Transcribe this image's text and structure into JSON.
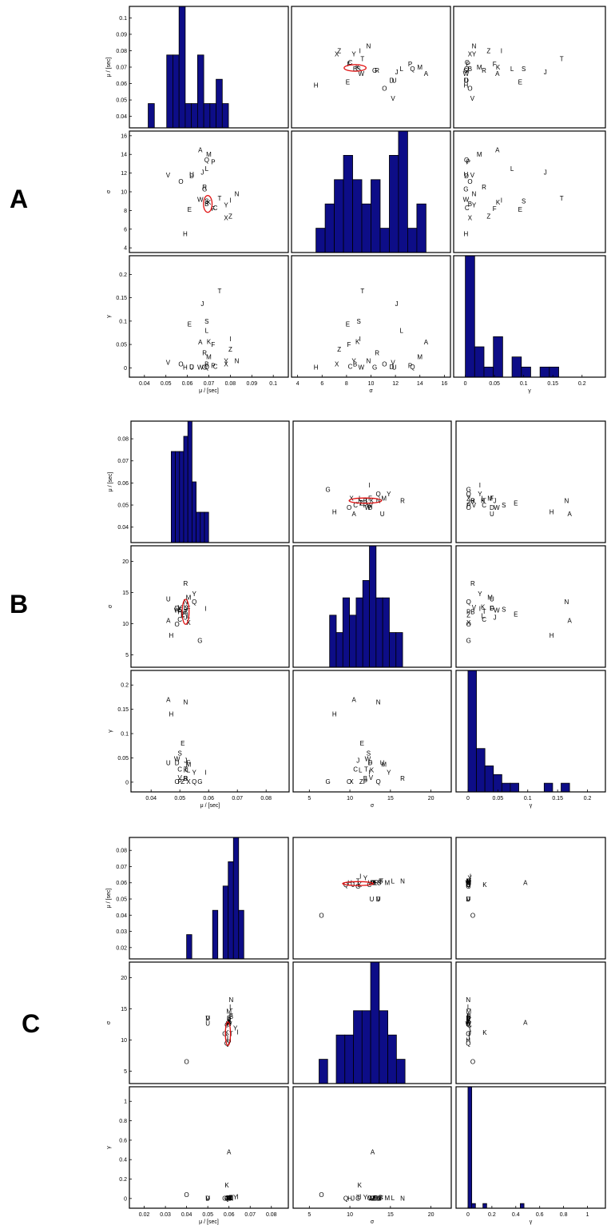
{
  "letters": [
    {
      "label": "A"
    },
    {
      "label": "B"
    },
    {
      "label": "C"
    }
  ],
  "chart_data": [
    {
      "type": "scatter",
      "panel": "A",
      "axes": {
        "mu": {
          "label": "μ / [sec]",
          "lim": [
            0.033,
            0.107
          ],
          "ticks": [
            0.04,
            0.05,
            0.06,
            0.07,
            0.08,
            0.09,
            0.1
          ]
        },
        "sigma": {
          "label": "σ",
          "lim": [
            3.5,
            16.5
          ],
          "ticks": [
            4,
            6,
            8,
            10,
            12,
            14,
            16
          ]
        },
        "gamma": {
          "label": "γ",
          "lim": [
            -0.02,
            0.24
          ],
          "ticks": [
            0,
            0.05,
            0.1,
            0.15,
            0.2
          ]
        }
      },
      "points": [
        {
          "label": "A",
          "mu": 0.066,
          "sigma": 14.5,
          "gamma": 0.055
        },
        {
          "label": "B",
          "mu": 0.069,
          "sigma": 8.7,
          "gamma": 0.008
        },
        {
          "label": "C",
          "mu": 0.073,
          "sigma": 8.3,
          "gamma": 0.003
        },
        {
          "label": "D",
          "mu": 0.062,
          "sigma": 11.7,
          "gamma": 0.002
        },
        {
          "label": "E",
          "mu": 0.061,
          "sigma": 8.1,
          "gamma": 0.094
        },
        {
          "label": "F",
          "mu": 0.072,
          "sigma": 8.2,
          "gamma": 0.05
        },
        {
          "label": "G",
          "mu": 0.068,
          "sigma": 10.3,
          "gamma": 0.001
        },
        {
          "label": "H",
          "mu": 0.059,
          "sigma": 5.5,
          "gamma": 0.001
        },
        {
          "label": "I",
          "mu": 0.08,
          "sigma": 9.1,
          "gamma": 0.062
        },
        {
          "label": "J",
          "mu": 0.067,
          "sigma": 12.1,
          "gamma": 0.137
        },
        {
          "label": "K",
          "mu": 0.07,
          "sigma": 8.9,
          "gamma": 0.056
        },
        {
          "label": "L",
          "mu": 0.069,
          "sigma": 12.5,
          "gamma": 0.08
        },
        {
          "label": "M",
          "mu": 0.07,
          "sigma": 14.0,
          "gamma": 0.024
        },
        {
          "label": "N",
          "mu": 0.083,
          "sigma": 9.8,
          "gamma": 0.015
        },
        {
          "label": "O",
          "mu": 0.057,
          "sigma": 11.1,
          "gamma": 0.008
        },
        {
          "label": "P",
          "mu": 0.072,
          "sigma": 13.2,
          "gamma": 0.005
        },
        {
          "label": "Q",
          "mu": 0.069,
          "sigma": 13.4,
          "gamma": 0.002
        },
        {
          "label": "R",
          "mu": 0.068,
          "sigma": 10.5,
          "gamma": 0.032
        },
        {
          "label": "S",
          "mu": 0.069,
          "sigma": 9.0,
          "gamma": 0.1
        },
        {
          "label": "T",
          "mu": 0.075,
          "sigma": 9.3,
          "gamma": 0.165
        },
        {
          "label": "U",
          "mu": 0.062,
          "sigma": 11.9,
          "gamma": 0.001
        },
        {
          "label": "V",
          "mu": 0.051,
          "sigma": 11.8,
          "gamma": 0.012
        },
        {
          "label": "W",
          "mu": 0.066,
          "sigma": 9.2,
          "gamma": 0.001
        },
        {
          "label": "X",
          "mu": 0.078,
          "sigma": 7.2,
          "gamma": 0.008
        },
        {
          "label": "Y",
          "mu": 0.078,
          "sigma": 8.6,
          "gamma": 0.015
        },
        {
          "label": "Z",
          "mu": 0.08,
          "sigma": 7.4,
          "gamma": 0.04
        }
      ],
      "ellipse": {
        "mu_center": 0.0695,
        "sigma_center": 8.7,
        "mu_radius": 0.002,
        "sigma_radius": 0.9
      },
      "histograms": {
        "mu": {
          "edges": [
            0.036,
            0.082
          ],
          "counts": [
            0,
            0,
            1,
            0,
            0,
            3,
            3,
            5,
            1,
            1,
            3,
            1,
            1,
            2,
            1,
            0
          ]
        },
        "sigma": {
          "edges": [
            5.5,
            14.5
          ],
          "counts": [
            1,
            2,
            3,
            4,
            3,
            2,
            3,
            1,
            4,
            5,
            1,
            2
          ]
        },
        "gamma": {
          "edges": [
            0,
            0.16
          ],
          "counts": [
            12,
            3,
            1,
            4,
            0,
            2,
            1,
            0,
            1,
            1
          ]
        }
      }
    },
    {
      "type": "scatter",
      "panel": "B",
      "axes": {
        "mu": {
          "label": "μ / [sec]",
          "lim": [
            0.033,
            0.088
          ],
          "ticks": [
            0.04,
            0.05,
            0.06,
            0.07,
            0.08
          ]
        },
        "sigma": {
          "label": "σ",
          "lim": [
            3,
            22.5
          ],
          "ticks": [
            5,
            10,
            15,
            20
          ]
        },
        "gamma": {
          "label": "γ",
          "lim": [
            -0.02,
            0.23
          ],
          "ticks": [
            0,
            0.05,
            0.1,
            0.15,
            0.2
          ]
        }
      },
      "points": [
        {
          "label": "A",
          "mu": 0.046,
          "sigma": 10.5,
          "gamma": 0.17
        },
        {
          "label": "B",
          "mu": 0.052,
          "sigma": 11.9,
          "gamma": 0.008
        },
        {
          "label": "C",
          "mu": 0.05,
          "sigma": 10.7,
          "gamma": 0.027
        },
        {
          "label": "D",
          "mu": 0.049,
          "sigma": 12.5,
          "gamma": 0.04
        },
        {
          "label": "E",
          "mu": 0.051,
          "sigma": 11.5,
          "gamma": 0.08
        },
        {
          "label": "F",
          "mu": 0.053,
          "sigma": 12.5,
          "gamma": 0.04
        },
        {
          "label": "G",
          "mu": 0.057,
          "sigma": 7.3,
          "gamma": 0.001
        },
        {
          "label": "H",
          "mu": 0.047,
          "sigma": 8.1,
          "gamma": 0.14
        },
        {
          "label": "I",
          "mu": 0.059,
          "sigma": 12.4,
          "gamma": 0.02
        },
        {
          "label": "J",
          "mu": 0.052,
          "sigma": 11.0,
          "gamma": 0.045
        },
        {
          "label": "K",
          "mu": 0.052,
          "sigma": 12.7,
          "gamma": 0.025
        },
        {
          "label": "L",
          "mu": 0.053,
          "sigma": 11.3,
          "gamma": 0.025
        },
        {
          "label": "M",
          "mu": 0.053,
          "sigma": 14.2,
          "gamma": 0.037
        },
        {
          "label": "N",
          "mu": 0.052,
          "sigma": 13.5,
          "gamma": 0.165
        },
        {
          "label": "O",
          "mu": 0.049,
          "sigma": 9.9,
          "gamma": 0.001
        },
        {
          "label": "P",
          "mu": 0.05,
          "sigma": 11.9,
          "gamma": 0.001
        },
        {
          "label": "Q",
          "mu": 0.055,
          "sigma": 13.5,
          "gamma": 0.001
        },
        {
          "label": "R",
          "mu": 0.052,
          "sigma": 16.5,
          "gamma": 0.008
        },
        {
          "label": "S",
          "mu": 0.05,
          "sigma": 12.3,
          "gamma": 0.06
        },
        {
          "label": "T",
          "mu": 0.052,
          "sigma": 12.0,
          "gamma": 0.027
        },
        {
          "label": "U",
          "mu": 0.046,
          "sigma": 14.0,
          "gamma": 0.04
        },
        {
          "label": "V",
          "mu": 0.05,
          "sigma": 12.6,
          "gamma": 0.01
        },
        {
          "label": "W",
          "mu": 0.049,
          "sigma": 12.2,
          "gamma": 0.048
        },
        {
          "label": "X",
          "mu": 0.053,
          "sigma": 10.2,
          "gamma": 0.001
        },
        {
          "label": "Y",
          "mu": 0.055,
          "sigma": 14.8,
          "gamma": 0.02
        },
        {
          "label": "Z",
          "mu": 0.051,
          "sigma": 11.4,
          "gamma": 0.001
        }
      ],
      "ellipse": {
        "mu_center": 0.052,
        "sigma_center": 11.9,
        "mu_radius": 0.0012,
        "sigma_radius": 2.0
      },
      "histograms": {
        "mu": {
          "edges": [
            0.047,
            0.06
          ],
          "counts": [
            6,
            6,
            6,
            7,
            8,
            4,
            2,
            2,
            2
          ]
        },
        "sigma": {
          "edges": [
            7.5,
            16.5
          ],
          "counts": [
            3,
            2,
            4,
            3,
            4,
            5,
            7,
            4,
            4,
            2,
            2
          ]
        },
        "gamma": {
          "edges": [
            0,
            0.17
          ],
          "counts": [
            14,
            5,
            3,
            2,
            1,
            1,
            0,
            0,
            0,
            1,
            0,
            1
          ]
        }
      }
    },
    {
      "type": "scatter",
      "panel": "C",
      "axes": {
        "mu": {
          "label": "μ / [sec]",
          "lim": [
            0.013,
            0.088
          ],
          "ticks": [
            0.02,
            0.03,
            0.04,
            0.05,
            0.06,
            0.07,
            0.08
          ]
        },
        "sigma": {
          "label": "σ",
          "lim": [
            3,
            22.5
          ],
          "ticks": [
            5,
            10,
            15,
            20
          ]
        },
        "gamma": {
          "label": "γ",
          "lim": [
            -0.1,
            1.15
          ],
          "ticks": [
            0,
            0.2,
            0.4,
            0.6,
            0.8,
            1
          ]
        }
      },
      "points": [
        {
          "label": "A",
          "mu": 0.06,
          "sigma": 12.8,
          "gamma": 0.48
        },
        {
          "label": "B",
          "mu": 0.061,
          "sigma": 13.8,
          "gamma": 0.01
        },
        {
          "label": "C",
          "mu": 0.059,
          "sigma": 12.4,
          "gamma": 0.005
        },
        {
          "label": "D",
          "mu": 0.05,
          "sigma": 13.5,
          "gamma": 0.002
        },
        {
          "label": "E",
          "mu": 0.06,
          "sigma": 13.1,
          "gamma": 0.005
        },
        {
          "label": "F",
          "mu": 0.061,
          "sigma": 13.9,
          "gamma": 0.004
        },
        {
          "label": "G",
          "mu": 0.058,
          "sigma": 11.0,
          "gamma": 0.003
        },
        {
          "label": "H",
          "mu": 0.06,
          "sigma": 10.0,
          "gamma": 0.001
        },
        {
          "label": "I",
          "mu": 0.064,
          "sigma": 11.3,
          "gamma": 0.02
        },
        {
          "label": "J",
          "mu": 0.059,
          "sigma": 10.4,
          "gamma": 0.003
        },
        {
          "label": "K",
          "mu": 0.059,
          "sigma": 11.2,
          "gamma": 0.14
        },
        {
          "label": "L",
          "mu": 0.061,
          "sigma": 15.3,
          "gamma": 0.008
        },
        {
          "label": "M",
          "mu": 0.06,
          "sigma": 14.6,
          "gamma": 0.006
        },
        {
          "label": "N",
          "mu": 0.061,
          "sigma": 16.5,
          "gamma": 0.002
        },
        {
          "label": "O",
          "mu": 0.04,
          "sigma": 6.5,
          "gamma": 0.04
        },
        {
          "label": "P",
          "mu": 0.06,
          "sigma": 12.8,
          "gamma": 0.004
        },
        {
          "label": "Q",
          "mu": 0.059,
          "sigma": 9.5,
          "gamma": 0.003
        },
        {
          "label": "R",
          "mu": 0.06,
          "sigma": 13.3,
          "gamma": 0.003
        },
        {
          "label": "S",
          "mu": 0.06,
          "sigma": 13.6,
          "gamma": 0.002
        },
        {
          "label": "T",
          "mu": 0.061,
          "sigma": 11.0,
          "gamma": 0.012
        },
        {
          "label": "U",
          "mu": 0.05,
          "sigma": 12.7,
          "gamma": 0.002
        },
        {
          "label": "V",
          "mu": 0.05,
          "sigma": 13.5,
          "gamma": 0.003
        },
        {
          "label": "W",
          "mu": 0.06,
          "sigma": 12.6,
          "gamma": 0.002
        },
        {
          "label": "X",
          "mu": 0.06,
          "sigma": 13.0,
          "gamma": 0.002
        },
        {
          "label": "Y",
          "mu": 0.063,
          "sigma": 11.9,
          "gamma": 0.015
        },
        {
          "label": "Z",
          "mu": 0.06,
          "sigma": 12.9,
          "gamma": 0.003
        }
      ],
      "ellipse": {
        "mu_center": 0.0595,
        "sigma_center": 11.0,
        "mu_radius": 0.0012,
        "sigma_radius": 1.9
      },
      "histograms": {
        "mu": {
          "edges": [
            0.04,
            0.067
          ],
          "counts": [
            1,
            0,
            0,
            0,
            0,
            2,
            0,
            3,
            4,
            5,
            2
          ]
        },
        "sigma": {
          "edges": [
            6.2,
            16.8
          ],
          "counts": [
            1,
            0,
            2,
            2,
            3,
            3,
            5,
            3,
            2,
            1
          ]
        },
        "gamma": {
          "edges": [
            0,
            0.5
          ],
          "counts": [
            26,
            1,
            0,
            0,
            1,
            0,
            0,
            0,
            0,
            0,
            0,
            0,
            0,
            0,
            1,
            0
          ]
        }
      }
    }
  ]
}
